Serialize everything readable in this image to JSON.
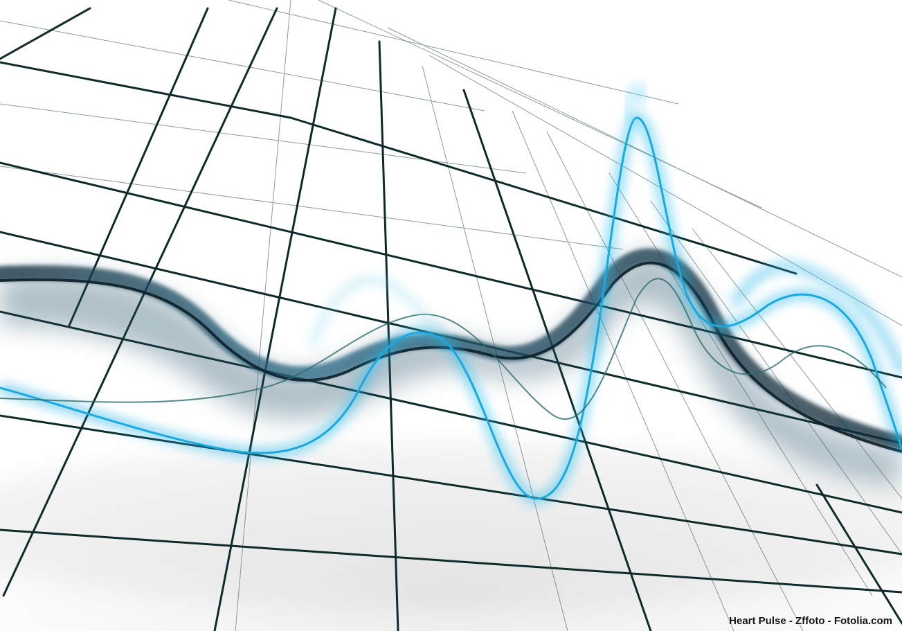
{
  "image": {
    "credit": "Heart Pulse - Zffoto - Fotolia.com"
  },
  "palette": {
    "background": "#ffffff",
    "grid": "#0f2a2a",
    "accent_cyan": "#1ab0e8",
    "accent_dark": "#1d3a4a"
  }
}
